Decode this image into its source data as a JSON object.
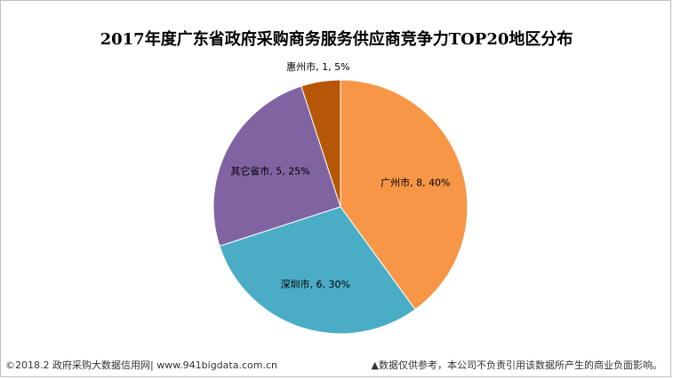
{
  "chart_data": {
    "type": "pie",
    "title": "2017年度广东省政府采购商务服务供应商竞争力TOP20地区分布",
    "slices": [
      {
        "label": "广州市",
        "value": 8,
        "percent": "40%",
        "color": "#F79646",
        "text": "广州市, 8, 40%"
      },
      {
        "label": "深圳市",
        "value": 6,
        "percent": "30%",
        "color": "#4BACC6",
        "text": "深圳市, 6, 30%"
      },
      {
        "label": "其它省市",
        "value": 5,
        "percent": "25%",
        "color": "#8064A2",
        "text": "其它省市, 5, 25%"
      },
      {
        "label": "惠州市",
        "value": 1,
        "percent": "5%",
        "color": "#B65708",
        "text": "惠州市, 1, 5%"
      }
    ],
    "legend": "none"
  },
  "footer": {
    "source": "©2018.2 政府采购大数据信用网| www.941bigdata.com.cn",
    "disclaimer": "▲数据仅供参考，本公司不负责引用该数据所产生的商业负面影响。"
  }
}
